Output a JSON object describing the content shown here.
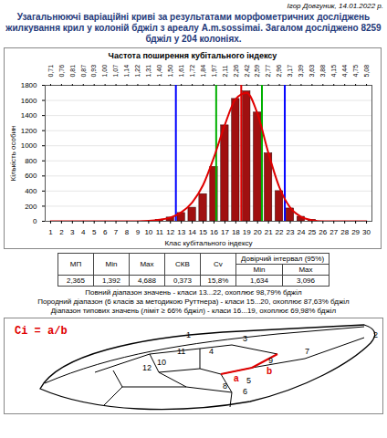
{
  "header": {
    "author": "Ігор Довгуник, 14.01.2022 р.",
    "title": "Узагальнюючі варіаційні криві за результатами морфометричних досліджень жилкування крил у колоній бджіл з ареалу A.m.sossimai. Загалом досліджено 8259 бджіл у 204 колоніях."
  },
  "chart_data": {
    "type": "bar",
    "title": "Частота поширення кубітального індексу",
    "x_label": "Клас кубітального індексу",
    "y_label": "Кількість особин",
    "categories": [
      1,
      2,
      3,
      4,
      5,
      6,
      7,
      8,
      9,
      10,
      11,
      12,
      13,
      14,
      15,
      16,
      17,
      18,
      19,
      20,
      21,
      22,
      23,
      24,
      25,
      26,
      27,
      28,
      29,
      30
    ],
    "values": [
      0,
      0,
      0,
      0,
      0,
      0,
      0,
      0,
      0,
      0,
      20,
      50,
      110,
      180,
      360,
      720,
      1270,
      1620,
      1720,
      1440,
      900,
      400,
      170,
      60,
      20,
      0,
      0,
      0,
      0,
      0
    ],
    "color": "#a01010",
    "curve": {
      "color": "#e00000",
      "values": [
        0,
        0,
        0,
        0,
        0,
        0,
        0,
        0,
        0,
        5,
        20,
        50,
        120,
        250,
        480,
        850,
        1280,
        1620,
        1700,
        1420,
        900,
        450,
        180,
        60,
        15,
        0,
        0,
        0,
        0,
        0
      ]
    },
    "markers": [
      {
        "value": 12.5,
        "color": "#0000ff"
      },
      {
        "value": 22.5,
        "color": "#0000ff"
      },
      {
        "value": 16.2,
        "color": "#00b000"
      },
      {
        "value": 20.4,
        "color": "#00b000"
      },
      {
        "value": 18.5,
        "color": "#e00000"
      }
    ],
    "xlim": [
      0.5,
      30.5
    ],
    "xticks": [
      1,
      2,
      3,
      4,
      5,
      6,
      7,
      8,
      9,
      10,
      11,
      12,
      13,
      14,
      15,
      16,
      17,
      18,
      19,
      20,
      21,
      22,
      23,
      24,
      25,
      26,
      27,
      28,
      29,
      30
    ],
    "x2ticks": [
      {
        "value": 1,
        "label": "0,71"
      },
      {
        "value": 2,
        "label": "0,76"
      },
      {
        "value": 3,
        "label": "0,81"
      },
      {
        "value": 4,
        "label": "0,87"
      },
      {
        "value": 5,
        "label": "0,93"
      },
      {
        "value": 6,
        "label": "1,00"
      },
      {
        "value": 7,
        "label": "1,07"
      },
      {
        "value": 8,
        "label": "1,14"
      },
      {
        "value": 9,
        "label": "1,22"
      },
      {
        "value": 10,
        "label": "1,31"
      },
      {
        "value": 11,
        "label": "1,40"
      },
      {
        "value": 12,
        "label": "1,50"
      },
      {
        "value": 13,
        "label": "1,61"
      },
      {
        "value": 14,
        "label": "1,72"
      },
      {
        "value": 15,
        "label": "1,84"
      },
      {
        "value": 16,
        "label": "1,97"
      },
      {
        "value": 17,
        "label": "2,11"
      },
      {
        "value": 18,
        "label": "2,26"
      },
      {
        "value": 19,
        "label": "2,42"
      },
      {
        "value": 20,
        "label": "2,59"
      },
      {
        "value": 21,
        "label": "2,77"
      },
      {
        "value": 22,
        "label": "2,96"
      },
      {
        "value": 23,
        "label": "3,17"
      },
      {
        "value": 24,
        "label": "3,39"
      },
      {
        "value": 25,
        "label": "3,63"
      },
      {
        "value": 26,
        "label": "3,88"
      },
      {
        "value": 27,
        "label": "4,15"
      },
      {
        "value": 28,
        "label": "4,44"
      },
      {
        "value": 29,
        "label": "4,75"
      },
      {
        "value": 30,
        "label": "5,08"
      }
    ],
    "ylim": [
      0,
      1800
    ],
    "yticks": [
      0,
      200,
      400,
      600,
      800,
      1000,
      1200,
      1400,
      1600,
      1800
    ],
    "grid": true
  },
  "stats_table": {
    "headers": [
      "МП",
      "Min",
      "Max",
      "СКВ",
      "Cv",
      "Довірчий інтервал (95%)"
    ],
    "subheaders": [
      "Min",
      "Max"
    ],
    "rows": [
      [
        "2,365",
        "1,392",
        "4,688",
        "0,373",
        "15,8%",
        "1,634",
        "3,096"
      ]
    ]
  },
  "notes": [
    "Повний діапазон значень - класи 13...22, охоплює 98,79% бджіл",
    "Породний діапазон (6 класів за методикою Руттнера) - класи 15...20, охоплює 87,63% бджіл",
    "Діапазон типових значень (ліміт ≥ 66% бджіл) - класи 16...19, охоплює 69,98% бджіл"
  ],
  "wing": {
    "formula": "Ci = a/b",
    "labels": [
      "1",
      "2",
      "3",
      "4",
      "5",
      "6",
      "7",
      "8",
      "9",
      "10",
      "11",
      "12"
    ],
    "segments": [
      "a",
      "b"
    ]
  }
}
